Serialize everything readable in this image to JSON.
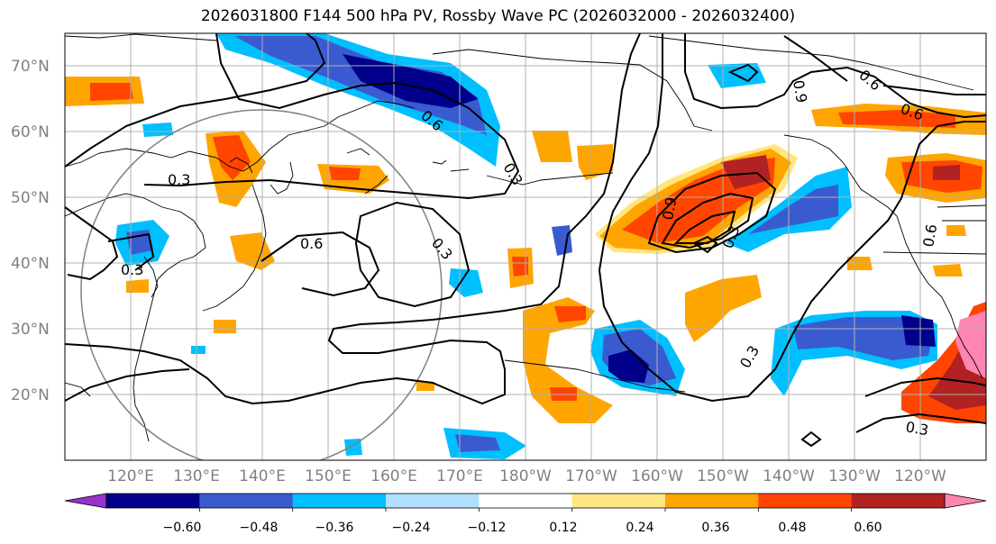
{
  "title": "2026031800 F144 500 hPa PV, Rossby Wave PC (2026032000 - 2026032400)",
  "latitude_labels": [
    "70°N",
    "60°N",
    "50°N",
    "40°N",
    "30°N",
    "20°N"
  ],
  "longitude_labels": [
    "120°E",
    "130°E",
    "140°E",
    "150°E",
    "160°E",
    "170°E",
    "180°W",
    "170°W",
    "160°W",
    "150°W",
    "140°W",
    "130°W",
    "120°W"
  ],
  "contour_labels": [
    "0.3",
    "0.3",
    "0.6",
    "0.3",
    "0.3",
    "0.6",
    "0.6",
    "0.9",
    "0.9",
    "0.3",
    "0.6",
    "0.3",
    "0.3",
    "0.6"
  ],
  "colorbar": {
    "tick_labels": [
      "−0.60",
      "−0.48",
      "−0.36",
      "−0.24",
      "−0.12",
      "0.12",
      "0.24",
      "0.36",
      "0.48",
      "0.60"
    ],
    "colors": [
      "#9932cc",
      "#00008b",
      "#3a5bd0",
      "#00bfff",
      "#b0e0ff",
      "#ffffff",
      "#ffe680",
      "#ffa500",
      "#ff4500",
      "#b22222",
      "#ff85b3"
    ]
  }
}
